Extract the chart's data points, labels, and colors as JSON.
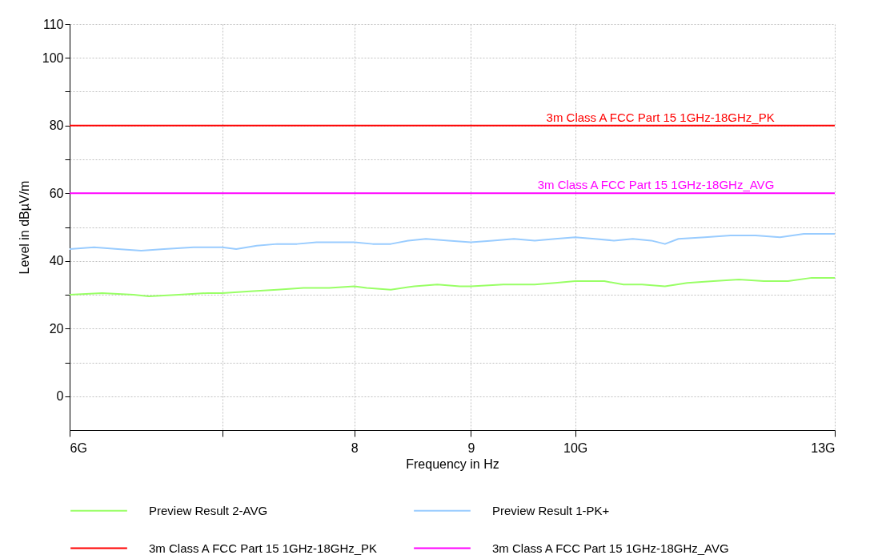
{
  "chart_data": {
    "type": "line",
    "xlabel": "Frequency in Hz",
    "ylabel": "Level in dBµV/m",
    "xlim": [
      6,
      13
    ],
    "xticks": [
      {
        "value": 6,
        "label": "6G"
      },
      {
        "value": 7,
        "label": null
      },
      8,
      9,
      {
        "value": 10,
        "label": "10G"
      },
      {
        "value": 13,
        "label": "13G"
      }
    ],
    "ylim": [
      -10,
      110
    ],
    "yticks": [
      0,
      {
        "value": 10,
        "label": null
      },
      20,
      {
        "value": 30,
        "label": null
      },
      40,
      {
        "value": 50,
        "label": null
      },
      60,
      {
        "value": 70,
        "label": null
      },
      80,
      {
        "value": 90,
        "label": null
      },
      100,
      110
    ],
    "log": "x",
    "grid": true,
    "legend": "bottom",
    "line_style": "solid",
    "series": [
      {
        "name": "Preview Result 2-AVG",
        "color": "#99ff66",
        "x": [
          6,
          6.2,
          6.4,
          6.5,
          6.7,
          6.9,
          7,
          7.2,
          7.4,
          7.6,
          7.8,
          8,
          8.1,
          8.3,
          8.5,
          8.7,
          8.9,
          9,
          9.3,
          9.6,
          9.8,
          10,
          10.3,
          10.5,
          10.7,
          10.95,
          11.2,
          11.5,
          11.8,
          12.1,
          12.4,
          12.7,
          13
        ],
        "values": [
          30,
          30.5,
          30,
          29.5,
          30,
          30.5,
          30.5,
          31,
          31.5,
          32,
          32,
          32.5,
          32,
          31.5,
          32.5,
          33,
          32.5,
          32.5,
          33,
          33,
          33.5,
          34,
          34,
          33,
          33,
          32.5,
          33.5,
          34,
          34.5,
          34,
          34,
          35,
          35
        ]
      },
      {
        "name": "Preview Result 1-PK+",
        "color": "#99ccff",
        "x": [
          6,
          6.15,
          6.3,
          6.45,
          6.6,
          6.8,
          7,
          7.1,
          7.25,
          7.4,
          7.55,
          7.7,
          7.85,
          8,
          8.15,
          8.3,
          8.45,
          8.6,
          8.8,
          9,
          9.2,
          9.4,
          9.6,
          9.8,
          10,
          10.2,
          10.4,
          10.6,
          10.8,
          10.95,
          11.1,
          11.4,
          11.7,
          12,
          12.3,
          12.6,
          12.85,
          13
        ],
        "values": [
          43.5,
          44,
          43.5,
          43,
          43.5,
          44,
          44,
          43.5,
          44.5,
          45,
          45,
          45.5,
          45.5,
          45.5,
          45,
          45,
          46,
          46.5,
          46,
          45.5,
          46,
          46.5,
          46,
          46.5,
          47,
          46.5,
          46,
          46.5,
          46,
          45,
          46.5,
          47,
          47.5,
          47.5,
          47,
          48,
          48,
          48
        ]
      },
      {
        "name": "3m Class A FCC Part 15 1GHz-18GHz_PK",
        "color": "#ff0000",
        "x": [
          6,
          13
        ],
        "values": [
          80,
          80
        ]
      },
      {
        "name": "3m Class A FCC Part 15 1GHz-18GHz_AVG",
        "color": "#ff00ff",
        "x": [
          6,
          13
        ],
        "values": [
          60,
          60
        ]
      }
    ],
    "annotations": [
      {
        "text": "3m Class A FCC Part 15 1GHz-18GHz_PK",
        "x": 10.9,
        "y": 80
      },
      {
        "text": "3m Class A FCC Part 15 1GHz-18GHz_AVG",
        "x": 10.85,
        "y": 60
      }
    ]
  }
}
